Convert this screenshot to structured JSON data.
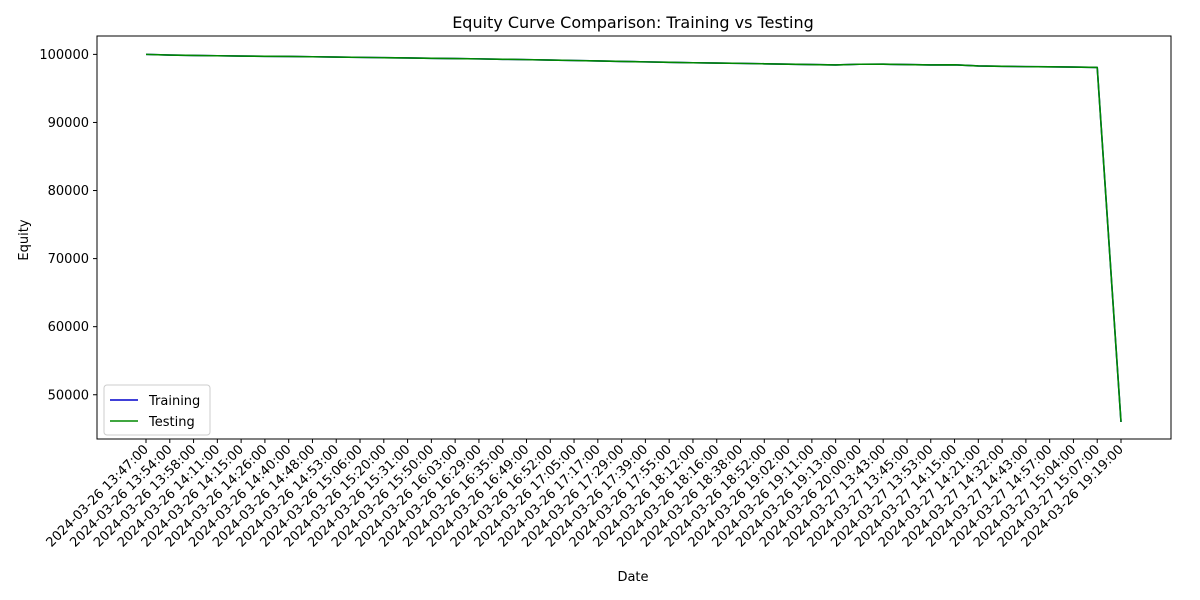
{
  "chart_data": {
    "type": "line",
    "title": "Equity Curve Comparison: Training vs Testing",
    "xlabel": "Date",
    "ylabel": "Equity",
    "ylim": [
      43500,
      102700
    ],
    "yticks": [
      50000,
      60000,
      70000,
      80000,
      90000,
      100000
    ],
    "grid": false,
    "legend_position": "lower-left",
    "categories": [
      "2024-03-26 13:47:00",
      "2024-03-26 13:54:00",
      "2024-03-26 13:58:00",
      "2024-03-26 14:11:00",
      "2024-03-26 14:15:00",
      "2024-03-26 14:26:00",
      "2024-03-26 14:40:00",
      "2024-03-26 14:48:00",
      "2024-03-26 14:53:00",
      "2024-03-26 15:06:00",
      "2024-03-26 15:20:00",
      "2024-03-26 15:31:00",
      "2024-03-26 15:50:00",
      "2024-03-26 16:03:00",
      "2024-03-26 16:29:00",
      "2024-03-26 16:35:00",
      "2024-03-26 16:49:00",
      "2024-03-26 16:52:00",
      "2024-03-26 17:05:00",
      "2024-03-26 17:17:00",
      "2024-03-26 17:29:00",
      "2024-03-26 17:39:00",
      "2024-03-26 17:55:00",
      "2024-03-26 18:12:00",
      "2024-03-26 18:16:00",
      "2024-03-26 18:38:00",
      "2024-03-26 18:52:00",
      "2024-03-26 19:02:00",
      "2024-03-26 19:11:00",
      "2024-03-26 19:13:00",
      "2024-03-26 20:00:00",
      "2024-03-27 13:43:00",
      "2024-03-27 13:45:00",
      "2024-03-27 13:53:00",
      "2024-03-27 14:15:00",
      "2024-03-27 14:21:00",
      "2024-03-27 14:32:00",
      "2024-03-27 14:43:00",
      "2024-03-27 14:57:00",
      "2024-03-27 15:04:00",
      "2024-03-27 15:07:00",
      "2024-03-26 19:19:00"
    ],
    "series": [
      {
        "name": "Training",
        "color": "#0000cc",
        "values": [
          100000,
          99900,
          99850,
          99800,
          99750,
          99720,
          99700,
          99650,
          99600,
          99560,
          99520,
          99480,
          99420,
          99380,
          99340,
          99280,
          99230,
          99170,
          99100,
          99030,
          98960,
          98900,
          98840,
          98770,
          98720,
          98680,
          98620,
          98560,
          98500,
          98450,
          98550,
          98560,
          98500,
          98450,
          98470,
          98300,
          98250,
          98200,
          98180,
          98130,
          98080,
          46000
        ]
      },
      {
        "name": "Testing",
        "color": "#008800",
        "values": [
          100000,
          99900,
          99850,
          99800,
          99750,
          99720,
          99700,
          99650,
          99600,
          99560,
          99520,
          99480,
          99420,
          99380,
          99340,
          99280,
          99230,
          99170,
          99100,
          99030,
          98960,
          98900,
          98840,
          98770,
          98720,
          98680,
          98620,
          98560,
          98500,
          98450,
          98550,
          98560,
          98500,
          98450,
          98470,
          98300,
          98250,
          98200,
          98180,
          98130,
          98080,
          46000
        ]
      }
    ]
  }
}
